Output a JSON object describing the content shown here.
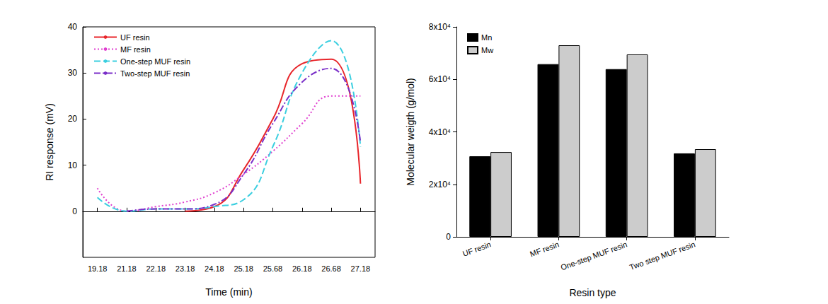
{
  "chart_data": [
    {
      "type": "line",
      "xlabel": "Time (min)",
      "ylabel": "RI response (mV)",
      "categories": [
        "19.18",
        "21.18",
        "22.18",
        "23.18",
        "24.18",
        "25.18",
        "25.68",
        "26.18",
        "26.68",
        "27.18"
      ],
      "ylim": [
        -10,
        40
      ],
      "yticks": [
        0,
        10,
        20,
        30,
        40
      ],
      "grid": false,
      "legend": "upper left",
      "series": [
        {
          "name": "UF resin",
          "color": "#e8262b",
          "line_style": "solid",
          "values": [
            null,
            null,
            null,
            0,
            1,
            9,
            20,
            32,
            33,
            6
          ]
        },
        {
          "name": "MF resin",
          "color": "#e040d0",
          "line_style": "dotted",
          "values": [
            5,
            0,
            1,
            2,
            4,
            8,
            13,
            19,
            25,
            25
          ]
        },
        {
          "name": "One-step MUF resin",
          "color": "#3ccfe0",
          "line_style": "dashed",
          "values": [
            3,
            0,
            0.5,
            0.5,
            1,
            2.5,
            14,
            30,
            37,
            14
          ]
        },
        {
          "name": "Two-step MUF resin",
          "color": "#7a2fc8",
          "line_style": "dashdot",
          "values": [
            null,
            0,
            0.5,
            0.5,
            1.5,
            8,
            19,
            28,
            31,
            15
          ]
        }
      ]
    },
    {
      "type": "bar",
      "xlabel": "Resin type",
      "ylabel": "Molecular weigth (g/mol)",
      "categories": [
        "UF resin",
        "MF resin",
        "One-step MUF resin",
        "Two step MUF resin"
      ],
      "ylim": [
        0,
        80000
      ],
      "yticks": [
        0,
        {
          "value": 20000,
          "label": "2x10⁴"
        },
        {
          "value": 40000,
          "label": "4x10⁴"
        },
        {
          "value": 60000,
          "label": "6x10⁴"
        },
        {
          "value": 80000,
          "label": "8x10⁴"
        }
      ],
      "grid": false,
      "legend": "upper left",
      "series": [
        {
          "name": "Mn",
          "color": "#000000",
          "values": [
            30700,
            65800,
            63900,
            31800
          ]
        },
        {
          "name": "Mw",
          "color": "#cccccc",
          "values": [
            32300,
            73000,
            69500,
            33400
          ]
        }
      ]
    }
  ]
}
